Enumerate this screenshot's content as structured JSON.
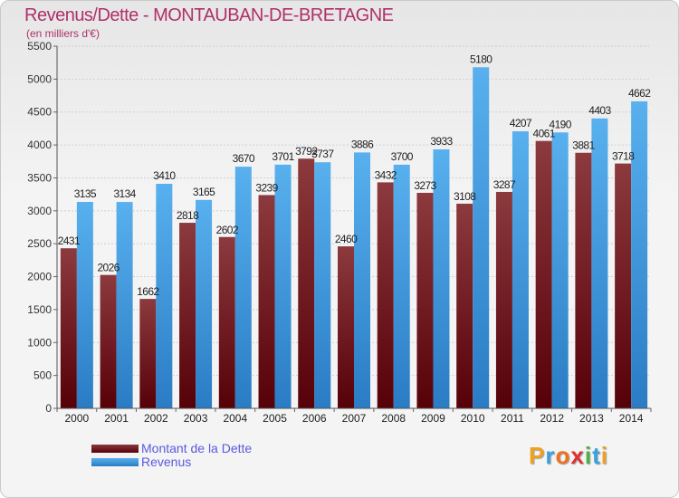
{
  "header": {
    "title": "Revenus/Dette - MONTAUBAN-DE-BRETAGNE",
    "subtitle": "(en milliers d'€)"
  },
  "colors": {
    "title": "#b0306a",
    "dette": "#7a2a2e",
    "revenus": "#4aa3e6",
    "legend_text": "#5a5ae0"
  },
  "chart_data": {
    "type": "bar",
    "categories": [
      "2000",
      "2001",
      "2002",
      "2003",
      "2004",
      "2005",
      "2006",
      "2007",
      "2008",
      "2009",
      "2010",
      "2011",
      "2012",
      "2013",
      "2014"
    ],
    "series": [
      {
        "name": "Montant de la Dette",
        "values": [
          2431,
          2026,
          1662,
          2818,
          2602,
          3239,
          3792,
          2460,
          3432,
          3273,
          3108,
          3287,
          4061,
          3881,
          3718
        ]
      },
      {
        "name": "Revenus",
        "values": [
          3135,
          3134,
          3410,
          3165,
          3670,
          3701,
          3737,
          3886,
          3700,
          3933,
          5180,
          4207,
          4190,
          4403,
          4662
        ]
      }
    ],
    "data_labels": {
      "Montant de la Dette": [
        "2431",
        "2026",
        "1662",
        "2818",
        "2602",
        "3239",
        "3792",
        "2460",
        "3432",
        "3273",
        "3108",
        "3287",
        "4061",
        "3881",
        "3718"
      ],
      "Revenus": [
        "3135",
        "3134",
        "3410",
        "3165",
        "3670",
        "3701",
        "3737",
        "3886",
        "3700",
        "3933",
        "5180",
        "4207",
        "4190",
        "4403",
        "4662"
      ]
    },
    "yticks": [
      "0",
      "500",
      "1000",
      "1500",
      "2000",
      "2500",
      "3000",
      "3500",
      "4000",
      "4500",
      "5000",
      "5500"
    ],
    "ylim": [
      0,
      5500
    ],
    "grid": true,
    "legend_position": "bottom-left"
  },
  "legend": {
    "items": [
      "Montant de la Dette",
      "Revenus"
    ]
  },
  "logo": {
    "letters": [
      "P",
      "r",
      "o",
      "x",
      "i",
      "t",
      "i"
    ],
    "colors": [
      "#f0a020",
      "#3aa0e0",
      "#f07020",
      "#e03030",
      "#50b040",
      "#3aa0e0",
      "#f0a020"
    ]
  }
}
